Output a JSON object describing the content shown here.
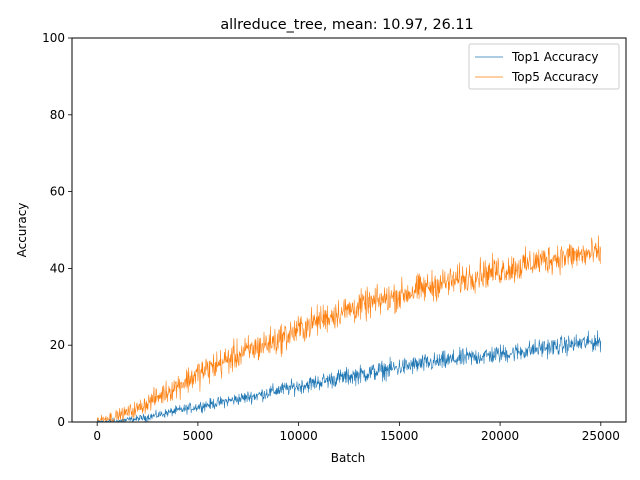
{
  "chart_data": {
    "type": "line",
    "title": "allreduce_tree, mean: 10.97, 26.11",
    "xlabel": "Batch",
    "ylabel": "Accuracy",
    "xlim": [
      -1250,
      26250
    ],
    "ylim": [
      0,
      100
    ],
    "x_ticks": [
      0,
      5000,
      10000,
      15000,
      20000,
      25000
    ],
    "y_ticks": [
      0,
      20,
      40,
      60,
      80,
      100
    ],
    "grid": false,
    "legend_position": "upper right",
    "series": [
      {
        "name": "Top1 Accuracy",
        "color": "#1f77b4",
        "x": [
          0,
          1000,
          2000,
          3000,
          4000,
          5000,
          6000,
          7000,
          8000,
          9000,
          10000,
          11000,
          12000,
          13000,
          14000,
          15000,
          16000,
          17000,
          18000,
          19000,
          20000,
          21000,
          22000,
          23000,
          24000,
          25000
        ],
        "y": [
          0,
          0.2,
          0.8,
          1.8,
          3.0,
          4.0,
          5.0,
          6.0,
          7.0,
          8.3,
          9.3,
          10.4,
          11.5,
          12.3,
          13.3,
          14.2,
          15.0,
          15.7,
          16.5,
          17.1,
          17.7,
          18.3,
          19.2,
          19.8,
          20.5,
          21.0
        ],
        "noise": 2.0
      },
      {
        "name": "Top5 Accuracy",
        "color": "#ff7f0e",
        "x": [
          0,
          1000,
          2000,
          3000,
          4000,
          5000,
          6000,
          7000,
          8000,
          9000,
          10000,
          11000,
          12000,
          13000,
          14000,
          15000,
          16000,
          17000,
          18000,
          19000,
          20000,
          21000,
          22000,
          23000,
          24000,
          25000
        ],
        "y": [
          0.5,
          1.5,
          3.5,
          6.5,
          9.5,
          12.5,
          15.0,
          17.5,
          19.5,
          21.5,
          24.0,
          26.5,
          28.5,
          30.0,
          31.5,
          33.0,
          34.5,
          36.0,
          37.0,
          38.5,
          39.5,
          40.5,
          42.0,
          43.0,
          43.5,
          44.0
        ],
        "noise": 3.2
      }
    ]
  }
}
